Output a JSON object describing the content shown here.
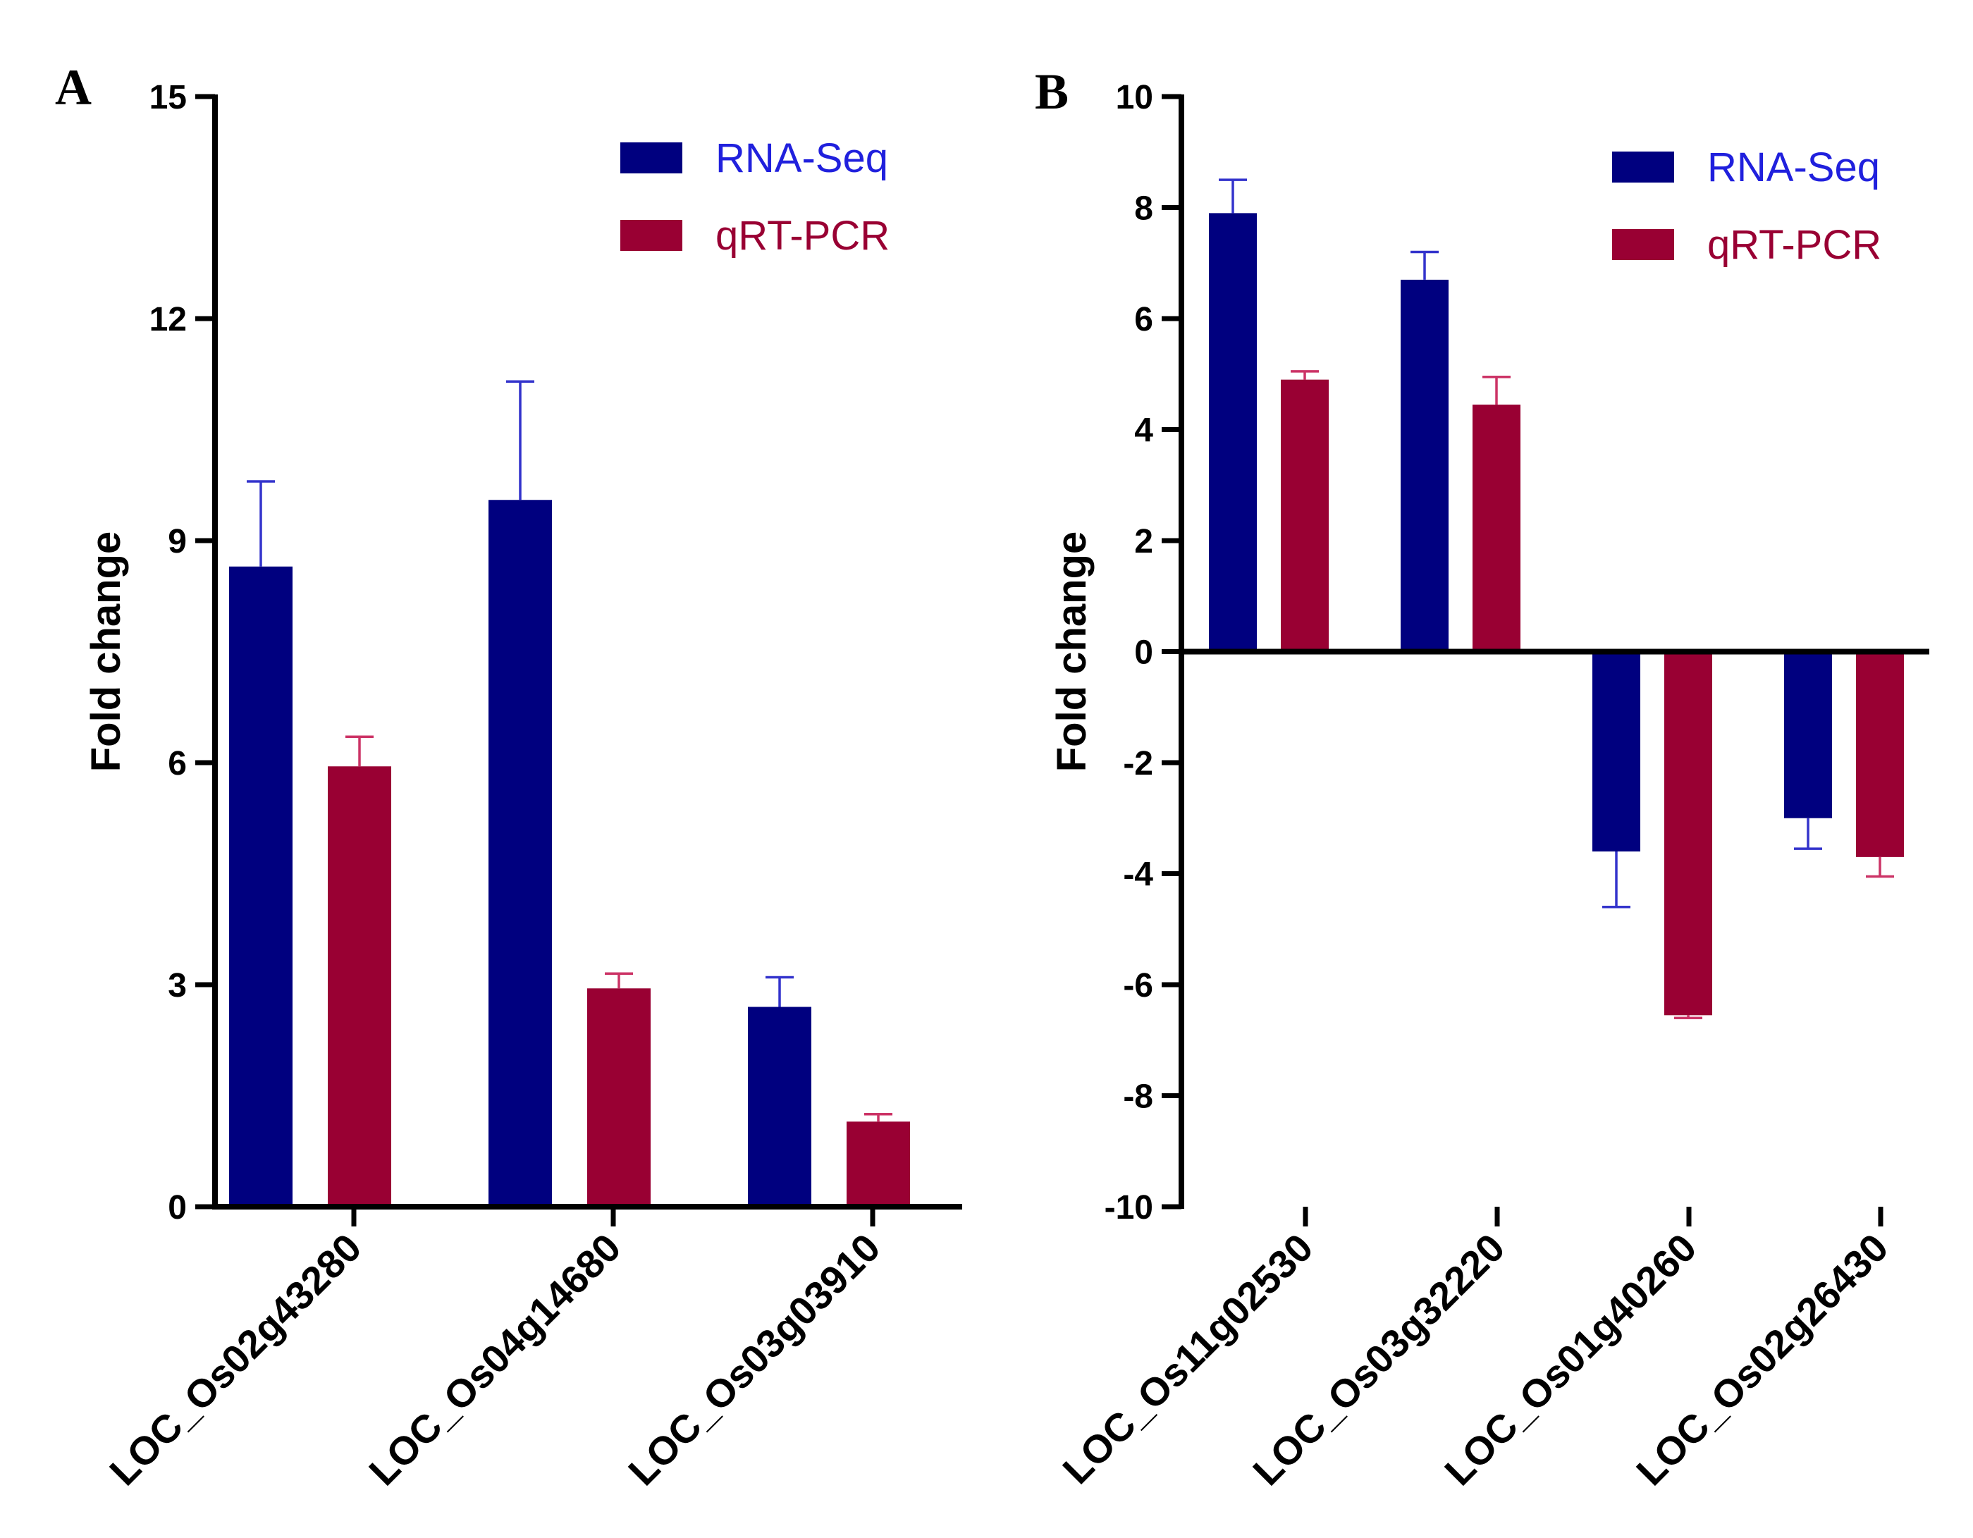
{
  "chart_data": [
    {
      "type": "bar",
      "panel_label": "A",
      "ylabel": "Fold change",
      "ylim": [
        0,
        15
      ],
      "yticks": [
        "0",
        "3",
        "6",
        "9",
        "12",
        "15"
      ],
      "categories": [
        "LOC_Os02g43280",
        "LOC_Os04g14680",
        "LOC_Os03g03910"
      ],
      "series": [
        {
          "name": "RNA-Seq",
          "color": "#00007f",
          "values": [
            8.65,
            9.55,
            2.7
          ],
          "errors": [
            1.15,
            1.6,
            0.4
          ]
        },
        {
          "name": "qRT-PCR",
          "color": "#990033",
          "values": [
            5.95,
            2.95,
            1.15
          ],
          "errors": [
            0.4,
            0.2,
            0.1
          ]
        }
      ],
      "legend_position": "top-right"
    },
    {
      "type": "bar",
      "panel_label": "B",
      "ylabel": "Fold change",
      "ylim": [
        -10,
        10
      ],
      "yticks": [
        "-10",
        "-8",
        "-6",
        "-4",
        "-2",
        "0",
        "2",
        "4",
        "6",
        "8",
        "10"
      ],
      "categories": [
        "LOC_Os11g02530",
        "LOC_Os03g32220",
        "LOC_Os01g40260",
        "LOC_Os02g26430"
      ],
      "series": [
        {
          "name": "RNA-Seq",
          "color": "#00007f",
          "values": [
            7.9,
            6.7,
            -3.6,
            -3.0
          ],
          "errors": [
            0.6,
            0.5,
            1.0,
            0.55
          ]
        },
        {
          "name": "qRT-PCR",
          "color": "#990033",
          "values": [
            4.9,
            4.45,
            -6.55,
            -3.7
          ],
          "errors": [
            0.15,
            0.5,
            0.05,
            0.35
          ]
        }
      ],
      "legend_position": "top-right"
    }
  ]
}
